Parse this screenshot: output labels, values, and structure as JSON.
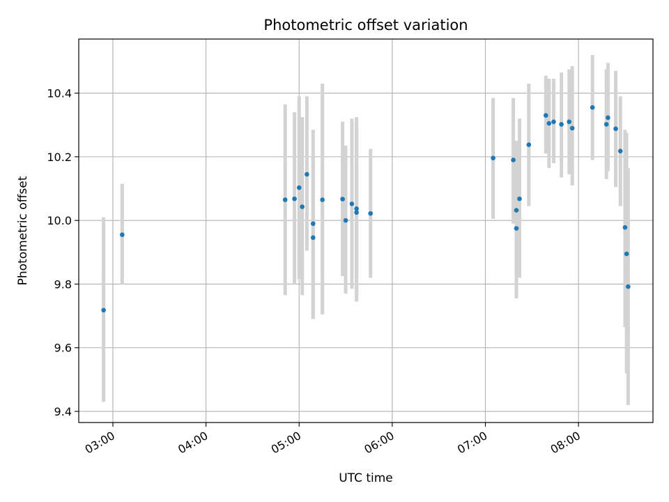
{
  "chart_data": {
    "type": "scatter",
    "title": "Photometric offset variation",
    "xlabel": "UTC time",
    "ylabel": "Photometric offset",
    "x_ticks": [
      "03:00",
      "04:00",
      "05:00",
      "06:00",
      "07:00",
      "08:00"
    ],
    "y_ticks": [
      "9.4",
      "9.6",
      "9.8",
      "10.0",
      "10.2",
      "10.4"
    ],
    "xlim": [
      "02:38",
      "08:48"
    ],
    "ylim": [
      9.365,
      10.57
    ],
    "grid": true,
    "colors": {
      "point": "#1f77b4",
      "errorbar": "#d3d3d3",
      "grid": "#b0b0b0",
      "axes": "#000000"
    },
    "points": [
      {
        "t": "02:54",
        "y": 9.718,
        "lo": 9.43,
        "hi": 10.01
      },
      {
        "t": "03:06",
        "y": 9.955,
        "lo": 9.8,
        "hi": 10.115
      },
      {
        "t": "04:51",
        "y": 10.065,
        "lo": 9.765,
        "hi": 10.365
      },
      {
        "t": "04:57",
        "y": 10.068,
        "lo": 9.8,
        "hi": 10.34
      },
      {
        "t": "05:00",
        "y": 10.103,
        "lo": 9.815,
        "hi": 10.39
      },
      {
        "t": "05:02",
        "y": 10.043,
        "lo": 9.765,
        "hi": 10.325
      },
      {
        "t": "05:05",
        "y": 10.145,
        "lo": 9.905,
        "hi": 10.39
      },
      {
        "t": "05:09",
        "y": 9.99,
        "lo": 9.695,
        "hi": 10.285
      },
      {
        "t": "05:09",
        "y": 9.946,
        "lo": 9.69,
        "hi": 10.2
      },
      {
        "t": "05:15",
        "y": 10.065,
        "lo": 9.705,
        "hi": 10.43
      },
      {
        "t": "05:28",
        "y": 10.067,
        "lo": 9.825,
        "hi": 10.31
      },
      {
        "t": "05:30",
        "y": 10.0,
        "lo": 9.77,
        "hi": 10.235
      },
      {
        "t": "05:34",
        "y": 10.052,
        "lo": 9.785,
        "hi": 10.32
      },
      {
        "t": "05:37",
        "y": 10.037,
        "lo": 9.745,
        "hi": 10.325
      },
      {
        "t": "05:37",
        "y": 10.025,
        "lo": 9.76,
        "hi": 10.3
      },
      {
        "t": "05:46",
        "y": 10.022,
        "lo": 9.82,
        "hi": 10.225
      },
      {
        "t": "07:05",
        "y": 10.196,
        "lo": 10.005,
        "hi": 10.385
      },
      {
        "t": "07:18",
        "y": 10.19,
        "lo": 9.99,
        "hi": 10.385
      },
      {
        "t": "07:20",
        "y": 10.032,
        "lo": 9.82,
        "hi": 10.25
      },
      {
        "t": "07:20",
        "y": 9.975,
        "lo": 9.755,
        "hi": 10.2
      },
      {
        "t": "07:22",
        "y": 10.068,
        "lo": 9.82,
        "hi": 10.32
      },
      {
        "t": "07:28",
        "y": 10.238,
        "lo": 10.045,
        "hi": 10.43
      },
      {
        "t": "07:39",
        "y": 10.33,
        "lo": 10.21,
        "hi": 10.455
      },
      {
        "t": "07:41",
        "y": 10.305,
        "lo": 10.165,
        "hi": 10.445
      },
      {
        "t": "07:44",
        "y": 10.31,
        "lo": 10.18,
        "hi": 10.445
      },
      {
        "t": "07:49",
        "y": 10.302,
        "lo": 10.135,
        "hi": 10.465
      },
      {
        "t": "07:54",
        "y": 10.31,
        "lo": 10.145,
        "hi": 10.475
      },
      {
        "t": "07:56",
        "y": 10.29,
        "lo": 10.11,
        "hi": 10.485
      },
      {
        "t": "08:09",
        "y": 10.355,
        "lo": 10.19,
        "hi": 10.52
      },
      {
        "t": "08:18",
        "y": 10.302,
        "lo": 10.13,
        "hi": 10.475
      },
      {
        "t": "08:19",
        "y": 10.323,
        "lo": 10.155,
        "hi": 10.495
      },
      {
        "t": "08:24",
        "y": 10.288,
        "lo": 10.105,
        "hi": 10.47
      },
      {
        "t": "08:27",
        "y": 10.218,
        "lo": 10.045,
        "hi": 10.39
      },
      {
        "t": "08:30",
        "y": 9.978,
        "lo": 9.665,
        "hi": 10.285
      },
      {
        "t": "08:31",
        "y": 9.895,
        "lo": 9.52,
        "hi": 10.275
      },
      {
        "t": "08:32",
        "y": 9.792,
        "lo": 9.42,
        "hi": 10.165
      }
    ]
  }
}
